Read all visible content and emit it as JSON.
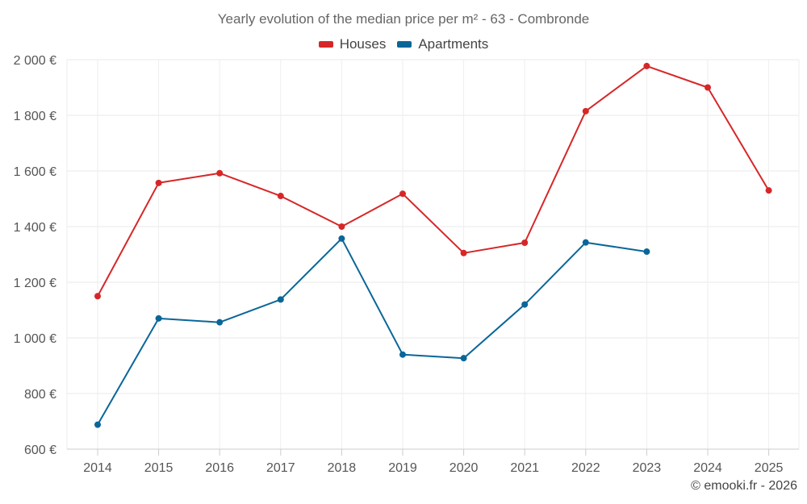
{
  "chart_data": {
    "type": "line",
    "title": "Yearly evolution of the median price per m² - 63 - Combronde",
    "categories": [
      "2014",
      "2015",
      "2016",
      "2017",
      "2018",
      "2019",
      "2020",
      "2021",
      "2022",
      "2023",
      "2024",
      "2025"
    ],
    "y_ticks": [
      "600 €",
      "800 €",
      "1 000 €",
      "1 200 €",
      "1 400 €",
      "1 600 €",
      "1 800 €",
      "2 000 €"
    ],
    "ylim": [
      600,
      2000
    ],
    "xlabel": "",
    "ylabel": "",
    "grid": true,
    "legend_position": "top-center",
    "series": [
      {
        "name": "Houses",
        "color": "#d62728",
        "values": [
          1150,
          1557,
          1592,
          1510,
          1400,
          1518,
          1305,
          1342,
          1815,
          1977,
          1900,
          1530
        ]
      },
      {
        "name": "Apartments",
        "color": "#0a6699",
        "values": [
          688,
          1070,
          1056,
          1138,
          1357,
          940,
          927,
          1120,
          1343,
          1310,
          null,
          null
        ]
      }
    ]
  },
  "credit": "© emooki.fr - 2026"
}
